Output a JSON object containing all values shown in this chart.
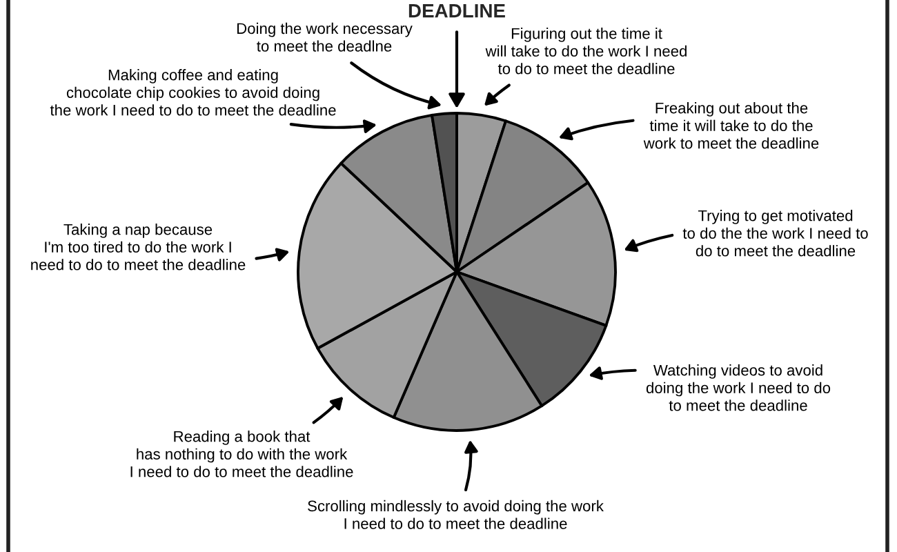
{
  "chart_data": {
    "type": "pie",
    "categories": [
      "Figuring out the time it\nwill take to do the work I need\nto do to meet the deadline",
      "Freaking out about the\ntime it will take to do the\nwork to meet the deadline",
      "Trying to get motivated\nto do the the work I need to\ndo to meet the deadline",
      "Watching videos to avoid\ndoing the work I need to do\nto meet the deadline",
      "Scrolling mindlessly to avoid doing the work\nI need to do to meet the deadline",
      "Reading a book that\nhas nothing to do with the work\nI need to do to meet the deadline",
      "Taking a nap because\nI'm too tired to do the work I\nneed to do to meet the deadline",
      "Making coffee and eating\nchocolate chip cookies to avoid doing\nthe work I need to do to meet the deadline",
      "Doing the work necessary\nto meet the deadlne"
    ],
    "values": [
      5,
      10.5,
      15,
      10.5,
      15.5,
      10.5,
      20,
      10.5,
      2.5
    ],
    "colors": [
      "#9c9c9c",
      "#848484",
      "#969696",
      "#5e5e5e",
      "#909090",
      "#a2a2a2",
      "#a8a8a8",
      "#8a8a8a",
      "#525252"
    ],
    "annotations": [
      "DEADLINE"
    ]
  }
}
